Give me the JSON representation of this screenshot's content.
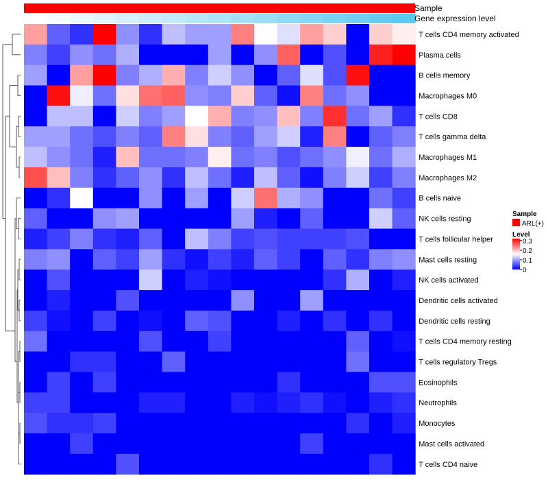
{
  "chart_data": {
    "type": "heatmap",
    "title": "",
    "column_annotations": [
      {
        "name": "Sample",
        "kind": "single",
        "color": "#ff0000"
      },
      {
        "name": "Gene expression level",
        "kind": "gradient",
        "colors": [
          "#ffffff",
          "#5bc8f0"
        ]
      }
    ],
    "rows": [
      "T cells CD4 memory activated",
      "Plasma cells",
      "B cells memory",
      "Macrophages M0",
      "T cells CD8",
      "T cells gamma delta",
      "Macrophages M1",
      "Macrophages M2",
      "B cells naive",
      "NK cells resting",
      "T cells follicular helper",
      "Mast cells resting",
      "NK cells activated",
      "Dendritic cells activated",
      "Dendritic cells resting",
      "T cells CD4 memory resting",
      "T cells regulatory  Tregs",
      "Eosinophils",
      "Neutrophils",
      "Monocytes",
      "Mast cells activated",
      "T cells CD4 naive"
    ],
    "n_columns": 17,
    "values": [
      [
        0.22,
        0.06,
        0.03,
        0.32,
        0.09,
        0.03,
        0.12,
        0.1,
        0.1,
        0.24,
        0.16,
        0.14,
        0.22,
        0.19,
        0.0,
        0.19,
        0.17
      ],
      [
        0.08,
        0.04,
        0.09,
        0.07,
        0.11,
        0.0,
        0.0,
        0.0,
        0.1,
        0.0,
        0.09,
        0.26,
        0.0,
        0.05,
        0.0,
        0.3,
        0.32
      ],
      [
        0.1,
        0.0,
        0.22,
        0.32,
        0.08,
        0.11,
        0.21,
        0.08,
        0.13,
        0.09,
        0.0,
        0.06,
        0.14,
        0.05,
        0.31,
        0.0,
        0.0
      ],
      [
        0.0,
        0.31,
        0.15,
        0.07,
        0.18,
        0.25,
        0.26,
        0.09,
        0.08,
        0.19,
        0.06,
        0.01,
        0.24,
        0.07,
        0.09,
        0.0,
        0.0
      ],
      [
        0.0,
        0.12,
        0.12,
        0.0,
        0.13,
        0.08,
        0.1,
        0.16,
        0.21,
        0.08,
        0.09,
        0.2,
        0.08,
        0.29,
        0.07,
        0.1,
        0.03
      ],
      [
        0.1,
        0.1,
        0.07,
        0.05,
        0.08,
        0.06,
        0.24,
        0.18,
        0.08,
        0.06,
        0.1,
        0.13,
        0.02,
        0.24,
        0.0,
        0.06,
        0.08
      ],
      [
        0.12,
        0.09,
        0.07,
        0.02,
        0.2,
        0.07,
        0.07,
        0.08,
        0.17,
        0.07,
        0.08,
        0.05,
        0.07,
        0.09,
        0.15,
        0.07,
        0.11
      ],
      [
        0.27,
        0.2,
        0.08,
        0.03,
        0.06,
        0.09,
        0.03,
        0.12,
        0.07,
        0.02,
        0.12,
        0.06,
        0.01,
        0.08,
        0.13,
        0.04,
        0.08
      ],
      [
        0.0,
        0.03,
        0.16,
        0.0,
        0.0,
        0.09,
        0.0,
        0.1,
        0.0,
        0.13,
        0.25,
        0.11,
        0.09,
        0.0,
        0.0,
        0.07,
        0.04
      ],
      [
        0.06,
        0.0,
        0.0,
        0.09,
        0.1,
        0.0,
        0.0,
        0.0,
        0.0,
        0.1,
        0.02,
        0.0,
        0.06,
        0.0,
        0.0,
        0.13,
        0.06
      ],
      [
        0.02,
        0.04,
        0.08,
        0.03,
        0.02,
        0.06,
        0.0,
        0.12,
        0.08,
        0.04,
        0.05,
        0.04,
        0.04,
        0.04,
        0.05,
        0.0,
        0.0
      ],
      [
        0.08,
        0.09,
        0.0,
        0.06,
        0.04,
        0.1,
        0.03,
        0.01,
        0.04,
        0.02,
        0.06,
        0.04,
        0.0,
        0.06,
        0.03,
        0.08,
        0.09
      ],
      [
        0.0,
        0.05,
        0.0,
        0.0,
        0.0,
        0.13,
        0.0,
        0.02,
        0.01,
        0.0,
        0.0,
        0.0,
        0.0,
        0.03,
        0.11,
        0.0,
        0.02
      ],
      [
        0.0,
        0.02,
        0.0,
        0.0,
        0.05,
        0.0,
        0.0,
        0.0,
        0.0,
        0.09,
        0.0,
        0.0,
        0.1,
        0.0,
        0.0,
        0.0,
        0.0
      ],
      [
        0.04,
        0.01,
        0.0,
        0.04,
        0.0,
        0.01,
        0.0,
        0.06,
        0.05,
        0.0,
        0.0,
        0.02,
        0.0,
        0.03,
        0.0,
        0.03,
        0.0
      ],
      [
        0.07,
        0.0,
        0.0,
        0.0,
        0.0,
        0.05,
        0.0,
        0.0,
        0.04,
        0.0,
        0.0,
        0.0,
        0.0,
        0.0,
        0.06,
        0.0,
        0.01
      ],
      [
        0.0,
        0.0,
        0.03,
        0.03,
        0.0,
        0.0,
        0.06,
        0.0,
        0.0,
        0.0,
        0.0,
        0.0,
        0.0,
        0.0,
        0.07,
        0.0,
        0.0
      ],
      [
        0.0,
        0.04,
        0.0,
        0.04,
        0.0,
        0.0,
        0.0,
        0.0,
        0.0,
        0.0,
        0.0,
        0.03,
        0.0,
        0.0,
        0.0,
        0.05,
        0.05
      ],
      [
        0.04,
        0.04,
        0.0,
        0.0,
        0.0,
        0.02,
        0.02,
        0.0,
        0.0,
        0.02,
        0.01,
        0.02,
        0.03,
        0.01,
        0.0,
        0.02,
        0.03
      ],
      [
        0.05,
        0.03,
        0.03,
        0.04,
        0.0,
        0.0,
        0.0,
        0.0,
        0.0,
        0.0,
        0.0,
        0.0,
        0.0,
        0.0,
        0.03,
        0.0,
        0.02
      ],
      [
        0.0,
        0.0,
        0.04,
        0.0,
        0.0,
        0.0,
        0.0,
        0.0,
        0.0,
        0.0,
        0.0,
        0.0,
        0.04,
        0.0,
        0.0,
        0.0,
        0.0
      ],
      [
        0.0,
        0.0,
        0.0,
        0.0,
        0.05,
        0.0,
        0.0,
        0.0,
        0.0,
        0.0,
        0.0,
        0.0,
        0.0,
        0.0,
        0.0,
        0.03,
        0.0
      ]
    ],
    "dendrogram": "rows",
    "legend": {
      "position": "right",
      "sample_title": "Sample",
      "sample_entry": "ARL(+)",
      "level_title": "Level",
      "level_ticks": [
        "0.3",
        "0.2",
        "0.1",
        "0"
      ],
      "level_tick_values": [
        0.3,
        0.2,
        0.1,
        0
      ],
      "color_scale": {
        "low": "#0000ff",
        "mid": "#ffffff",
        "high": "#ff0000",
        "min": 0,
        "mid_value": 0.16,
        "max": 0.32
      }
    }
  }
}
